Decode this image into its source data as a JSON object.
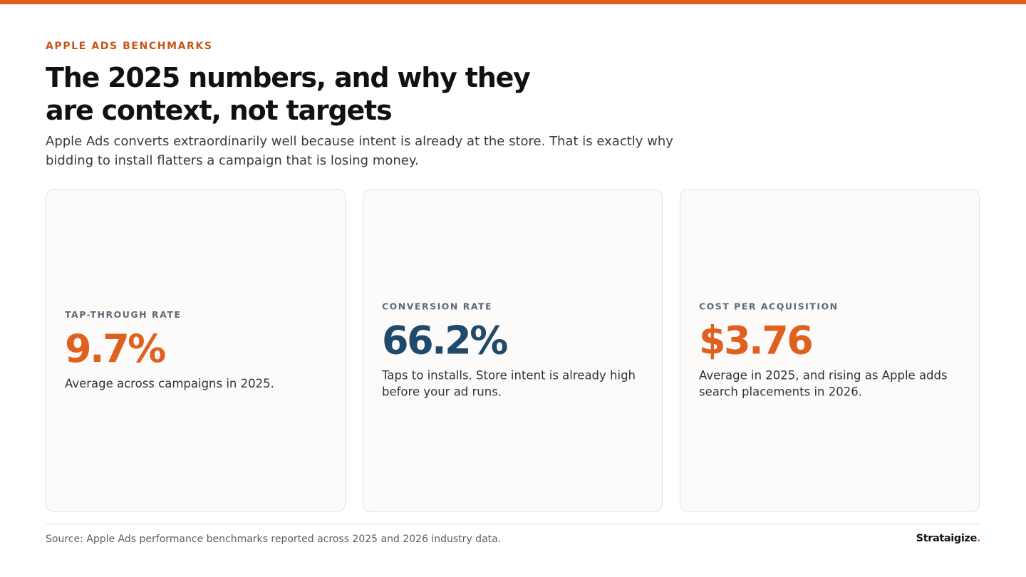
{
  "colors": {
    "accent": "#e0601f",
    "navy": "#1f4a6b"
  },
  "header": {
    "eyebrow": "APPLE ADS BENCHMARKS",
    "title": "The 2025 numbers, and why they are context, not targets",
    "subtitle": "Apple Ads converts extraordinarily well because intent is already at the store. That is exactly why bidding to install flatters a campaign that is losing money."
  },
  "cards": [
    {
      "label": "TAP-THROUGH RATE",
      "value": "9.7%",
      "description": "Average across campaigns in 2025.",
      "value_color": "#e0601f"
    },
    {
      "label": "CONVERSION RATE",
      "value": "66.2%",
      "description": "Taps to installs. Store intent is already high before your ad runs.",
      "value_color": "#1f4a6b"
    },
    {
      "label": "COST PER ACQUISITION",
      "value": "$3.76",
      "description": "Average in 2025, and rising as Apple adds search placements in 2026.",
      "value_color": "#e0601f"
    }
  ],
  "footer": {
    "source": "Source: Apple Ads performance benchmarks reported across 2025 and 2026 industry data.",
    "brand_name": "Strataigize",
    "brand_dot": "."
  }
}
